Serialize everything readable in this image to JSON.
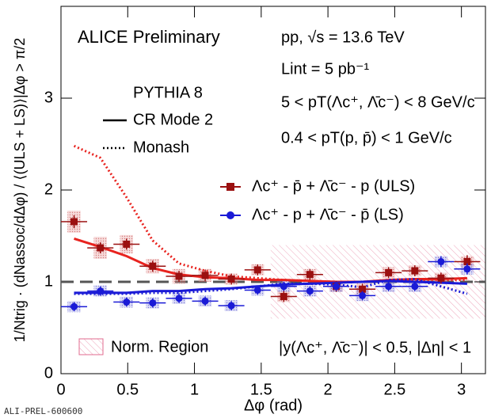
{
  "chart_data": {
    "type": "scatter",
    "title": "ALICE Preliminary",
    "annotations": [
      "pp,  √s = 13.6 TeV",
      "Lint = 5 pb⁻¹",
      "5 <  pT(Λc⁺, Λ̄c⁻) < 8 GeV/c",
      "0.4 <  pT(p, p̄) < 1 GeV/c",
      "PYTHIA 8",
      "|y(Λc⁺, Λ̄c⁻)| < 0.5, |Δη| < 1"
    ],
    "footer": "ALI-PREL-600600",
    "x_label": "Δφ (rad)",
    "y_label": "1/Ntrig · (dNassoc/dΔφ) / ⟨(ULS + LS)⟩|Δφ > π/2",
    "x": [
      0.098,
      0.295,
      0.491,
      0.687,
      0.884,
      1.08,
      1.276,
      1.473,
      1.669,
      1.865,
      2.062,
      2.258,
      2.454,
      2.651,
      2.847,
      3.043
    ],
    "bin_width": 0.196,
    "series": [
      {
        "name": "Λc⁺ - p̄  +  Λ̄c⁻ - p (ULS)",
        "color": "#9b1010",
        "marker": "square",
        "values": [
          1.655,
          1.37,
          1.41,
          1.17,
          1.06,
          1.07,
          1.03,
          1.13,
          0.84,
          1.08,
          0.95,
          0.92,
          1.1,
          1.12,
          1.04,
          1.22
        ],
        "errors": [
          0.07,
          0.06,
          0.06,
          0.06,
          0.06,
          0.06,
          0.06,
          0.06,
          0.06,
          0.06,
          0.06,
          0.06,
          0.06,
          0.06,
          0.06,
          0.07
        ],
        "syst": [
          0.12,
          0.12,
          0.1,
          0.08,
          0.08,
          0.07,
          0.06,
          0.06,
          0.06,
          0.06,
          0.06,
          0.06,
          0.06,
          0.06,
          0.06,
          0.06
        ]
      },
      {
        "name": "Λc⁺ - p  +  Λ̄c⁻ - p̄ (LS)",
        "color": "#1a1ad6",
        "marker": "circle",
        "values": [
          0.73,
          0.9,
          0.78,
          0.77,
          0.82,
          0.79,
          0.74,
          0.91,
          0.95,
          0.9,
          0.95,
          0.85,
          0.95,
          0.95,
          1.22,
          1.14
        ],
        "errors": [
          0.05,
          0.05,
          0.05,
          0.05,
          0.05,
          0.05,
          0.05,
          0.05,
          0.05,
          0.05,
          0.05,
          0.05,
          0.05,
          0.05,
          0.06,
          0.06
        ],
        "syst": [
          0.06,
          0.06,
          0.06,
          0.06,
          0.06,
          0.06,
          0.06,
          0.06,
          0.06,
          0.06,
          0.06,
          0.06,
          0.06,
          0.06,
          0.06,
          0.06
        ]
      }
    ],
    "models": [
      {
        "name": "CR Mode 2",
        "dash": "solid"
      },
      {
        "name": "Monash",
        "dash": "dotted"
      }
    ],
    "model_curves": [
      {
        "model": 0,
        "color": "#e8231f",
        "values": [
          1.47,
          1.38,
          1.28,
          1.15,
          1.08,
          1.05,
          1.04,
          1.02,
          1.02,
          1.01,
          1.0,
          1.0,
          1.02,
          1.03,
          1.03,
          1.04
        ]
      },
      {
        "model": 1,
        "color": "#e8231f",
        "values": [
          2.48,
          2.35,
          1.92,
          1.45,
          1.2,
          1.12,
          1.06,
          1.04,
          1.02,
          1.01,
          1.0,
          1.0,
          1.01,
          1.02,
          1.02,
          1.02
        ]
      },
      {
        "model": 0,
        "color": "#1a1ad6",
        "values": [
          0.88,
          0.88,
          0.88,
          0.9,
          0.9,
          0.92,
          0.93,
          0.95,
          0.97,
          0.98,
          0.99,
          1.0,
          1.01,
          1.0,
          0.99,
          0.98
        ]
      },
      {
        "model": 1,
        "color": "#1a1ad6",
        "values": [
          0.87,
          0.87,
          0.87,
          0.88,
          0.88,
          0.9,
          0.92,
          0.95,
          0.98,
          0.98,
          0.97,
          0.94,
          1.02,
          1.03,
          0.95,
          0.87
        ]
      }
    ],
    "reference_line": 1,
    "norm_region": {
      "label": "Norm. Region",
      "x": [
        1.571,
        3.18
      ],
      "y": [
        0.6,
        1.4
      ],
      "color": "#e26b8f"
    },
    "xlim": [
      0,
      3.18
    ],
    "ylim": [
      0,
      4
    ],
    "xticks": [
      0,
      0.5,
      1,
      1.5,
      2,
      2.5,
      3
    ],
    "yticks": [
      0,
      1,
      2,
      3
    ]
  }
}
